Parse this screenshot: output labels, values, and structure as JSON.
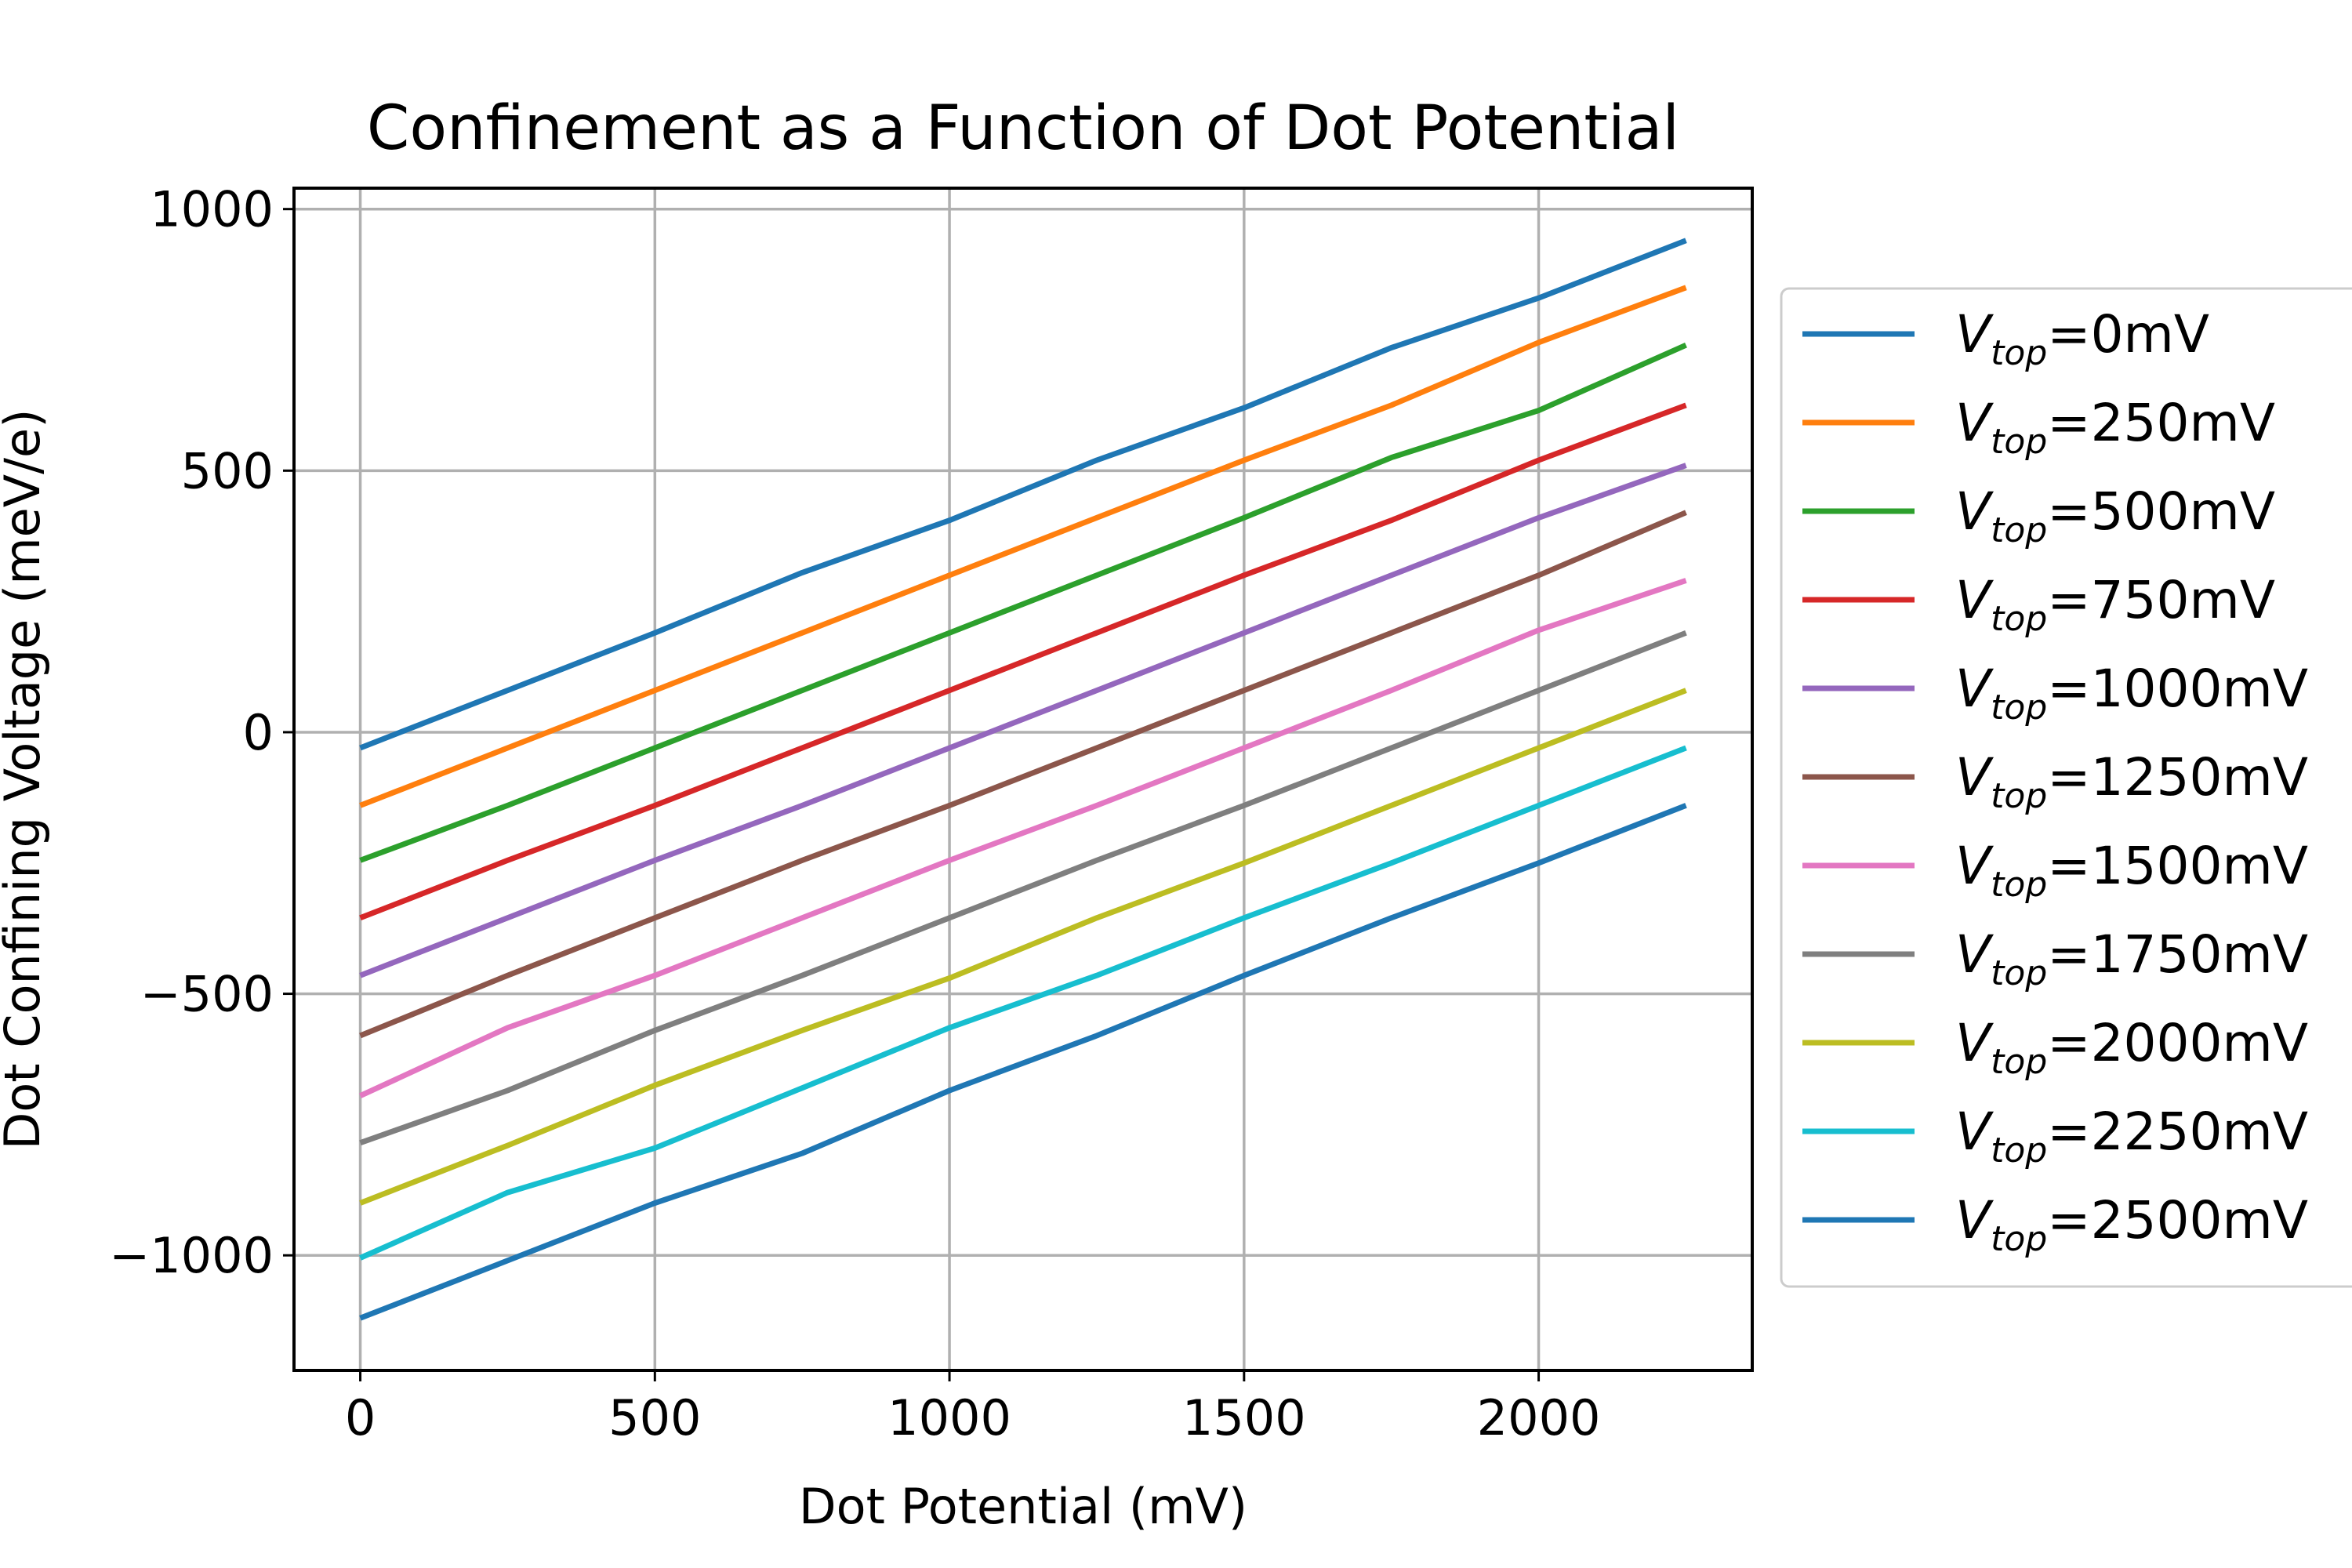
{
  "chart_data": {
    "type": "line",
    "title": "Confinement as a Function of Dot Potential",
    "xlabel": "Dot Potential (mV)",
    "ylabel": "Dot Confining Voltage (meV/e)",
    "xlim": [
      -112.5,
      2362.5
    ],
    "ylim": [
      -1220,
      1040
    ],
    "xticks": [
      0,
      500,
      1000,
      1500,
      2000
    ],
    "yticks": [
      -1000,
      -500,
      0,
      500,
      1000
    ],
    "xtick_labels": [
      "0",
      "500",
      "1000",
      "1500",
      "2000"
    ],
    "ytick_labels": [
      "−1000",
      "−500",
      "0",
      "500",
      "1000"
    ],
    "grid": true,
    "legend_position": "outside-right",
    "legend_var": "V",
    "legend_sub": "top",
    "x": [
      0,
      250,
      500,
      750,
      1000,
      1250,
      1500,
      1750,
      2000,
      2250
    ],
    "series": [
      {
        "name": "=0mV",
        "legend_suffix": "=0mV",
        "color": "#1f77b4",
        "values": [
          -30,
          80,
          190,
          305,
          405,
          520,
          620,
          735,
          830,
          940
        ]
      },
      {
        "name": "=250mV",
        "legend_suffix": "=250mV",
        "color": "#ff7f0e",
        "values": [
          -140,
          -30,
          80,
          190,
          300,
          410,
          520,
          625,
          745,
          850
        ]
      },
      {
        "name": "=500mV",
        "legend_suffix": "=500mV",
        "color": "#2ca02c",
        "values": [
          -245,
          -140,
          -30,
          80,
          190,
          300,
          410,
          525,
          615,
          740
        ]
      },
      {
        "name": "=750mV",
        "legend_suffix": "=750mV",
        "color": "#d62728",
        "values": [
          -355,
          -245,
          -140,
          -30,
          80,
          190,
          300,
          405,
          520,
          625
        ]
      },
      {
        "name": "=1000mV",
        "legend_suffix": "=1000mV",
        "color": "#9467bd",
        "values": [
          -465,
          -355,
          -245,
          -140,
          -30,
          80,
          190,
          300,
          410,
          510
        ]
      },
      {
        "name": "=1250mV",
        "legend_suffix": "=1250mV",
        "color": "#8c564b",
        "values": [
          -580,
          -465,
          -355,
          -245,
          -140,
          -30,
          80,
          190,
          300,
          420
        ]
      },
      {
        "name": "=1500mV",
        "legend_suffix": "=1500mV",
        "color": "#e377c2",
        "values": [
          -695,
          -565,
          -465,
          -355,
          -245,
          -140,
          -30,
          80,
          195,
          290
        ]
      },
      {
        "name": "=1750mV",
        "legend_suffix": "=1750mV",
        "color": "#7f7f7f",
        "values": [
          -785,
          -685,
          -570,
          -465,
          -355,
          -245,
          -140,
          -30,
          80,
          190
        ]
      },
      {
        "name": "=2000mV",
        "legend_suffix": "=2000mV",
        "color": "#bcbd22",
        "values": [
          -900,
          -790,
          -675,
          -570,
          -470,
          -355,
          -250,
          -140,
          -30,
          80
        ]
      },
      {
        "name": "=2250mV",
        "legend_suffix": "=2250mV",
        "color": "#17becf",
        "values": [
          -1005,
          -880,
          -795,
          -680,
          -565,
          -465,
          -355,
          -250,
          -140,
          -30
        ]
      },
      {
        "name": "=2500mV",
        "legend_suffix": "=2500mV",
        "color": "#1f77b4",
        "values": [
          -1120,
          -1010,
          -900,
          -805,
          -685,
          -580,
          -465,
          -355,
          -250,
          -140
        ]
      }
    ]
  }
}
